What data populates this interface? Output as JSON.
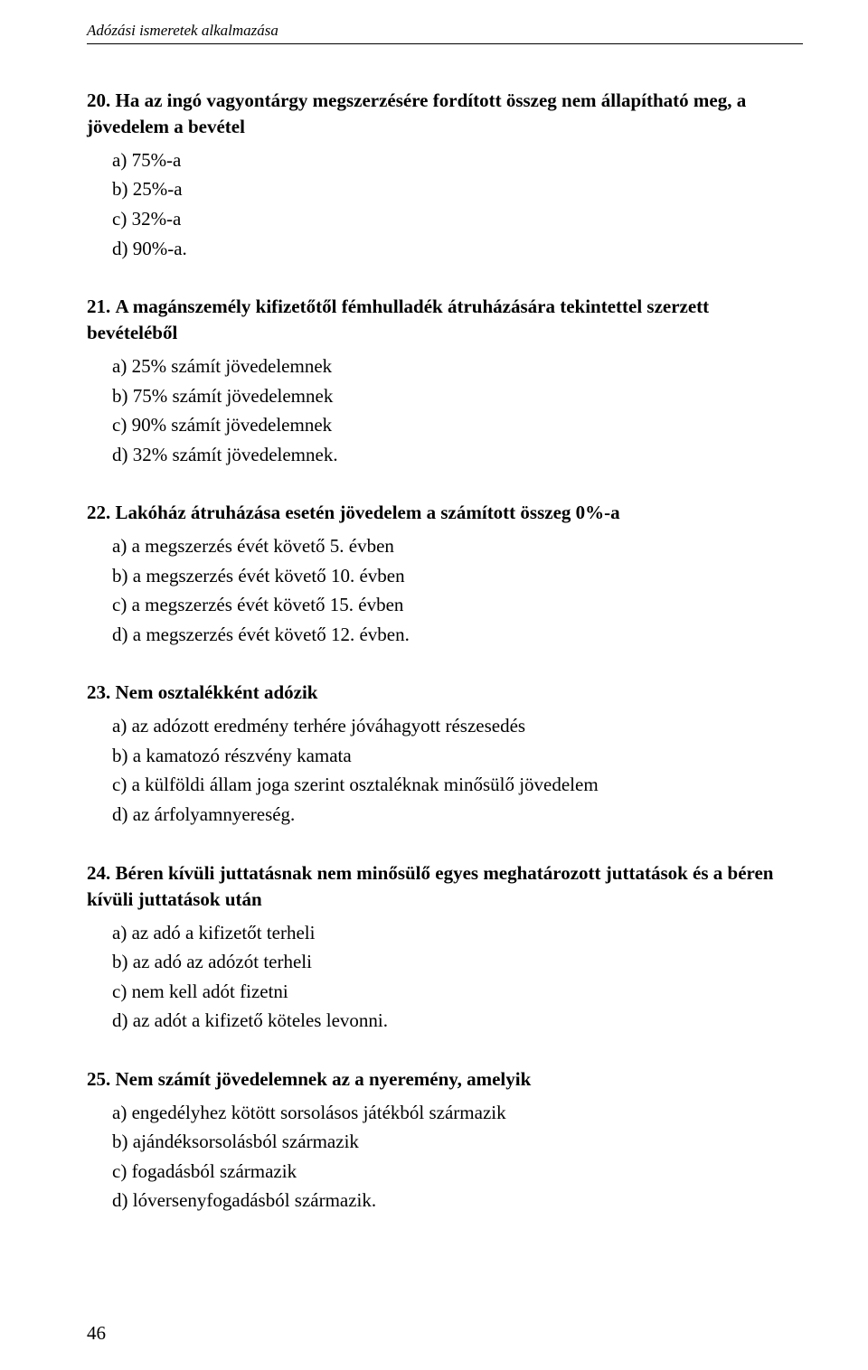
{
  "header": "Adózási ismeretek alkalmazása",
  "questions": [
    {
      "num": "20.",
      "stem": "Ha az ingó vagyontárgy megszerzésére fordított összeg nem állapítható meg, a jövedelem a bevétel",
      "options": [
        "a) 75%-a",
        "b) 25%-a",
        "c) 32%-a",
        "d) 90%-a."
      ]
    },
    {
      "num": "21.",
      "stem": "A magánszemély kifizetőtől fémhulladék átruházására tekintettel szerzett bevételéből",
      "options": [
        "a) 25% számít jövedelemnek",
        "b) 75% számít jövedelemnek",
        "c) 90% számít jövedelemnek",
        "d) 32% számít jövedelemnek."
      ]
    },
    {
      "num": "22.",
      "stem": "Lakóház átruházása esetén jövedelem a számított összeg 0%-a",
      "options": [
        "a) a megszerzés évét követő 5. évben",
        "b) a megszerzés évét követő 10. évben",
        "c) a megszerzés évét követő 15. évben",
        "d) a megszerzés évét követő 12. évben."
      ]
    },
    {
      "num": "23.",
      "stem": "Nem osztalékként adózik",
      "options": [
        "a) az adózott eredmény terhére jóváhagyott részesedés",
        "b) a kamatozó részvény kamata",
        "c) a külföldi állam joga szerint osztaléknak minősülő jövedelem",
        "d) az árfolyamnyereség."
      ]
    },
    {
      "num": "24.",
      "stem": "Béren kívüli juttatásnak nem minősülő egyes meghatározott juttatások és a béren kívüli juttatások után",
      "options": [
        "a) az adó a kifizetőt terheli",
        "b) az adó az adózót terheli",
        "c) nem kell adót fizetni",
        "d) az adót a kifizető köteles levonni."
      ]
    },
    {
      "num": "25.",
      "stem": "Nem számít jövedelemnek az a nyeremény, amelyik",
      "options": [
        "a) engedélyhez kötött sorsolásos játékból származik",
        "b) ajándéksorsolásból származik",
        "c) fogadásból származik",
        "d) lóversenyfogadásból származik."
      ]
    }
  ],
  "page_number": "46"
}
